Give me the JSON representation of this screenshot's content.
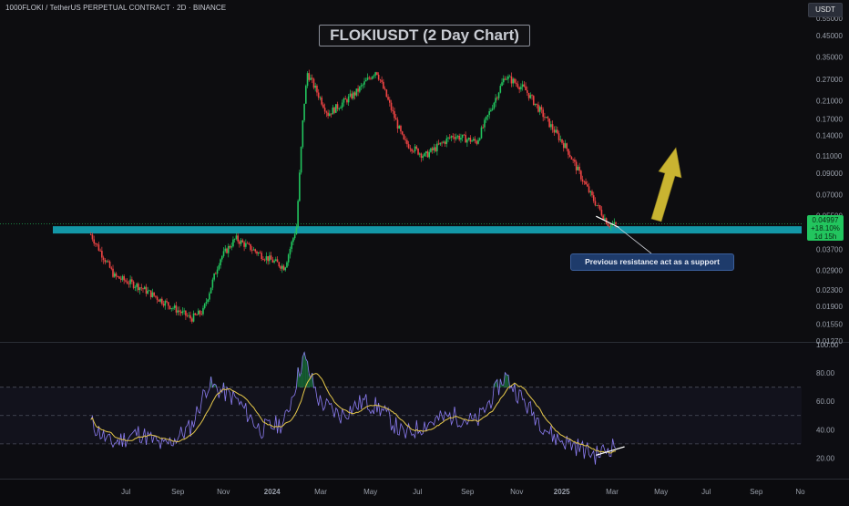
{
  "header": {
    "symbol_line": "1000FLOKI / TetherUS PERPETUAL CONTRACT · 2D · BINANCE",
    "currency_button": "USDT"
  },
  "annotation": {
    "title_box": "FLOKIUSDT (2 Day Chart)",
    "callout": "Previous resistance act as a support"
  },
  "last_price": {
    "price": "0.04997",
    "change": "+18.10%",
    "countdown": "1d 15h"
  },
  "colors": {
    "up": "#22c55e",
    "down": "#ef4444",
    "zone": "#14a6b8",
    "rsi": "#8b7cf0",
    "rsi_ma": "#e6c84a",
    "arrow": "#c9b431",
    "background": "#0b0b0e"
  },
  "chart_data": [
    {
      "type": "candlestick",
      "scale": "log",
      "ylim": [
        0.0127,
        0.55
      ],
      "y_ticks": [
        "0.55000",
        "0.45000",
        "0.35000",
        "0.27000",
        "0.21000",
        "0.17000",
        "0.14000",
        "0.11000",
        "0.09000",
        "0.07000",
        "0.05500",
        "0.03700",
        "0.02900",
        "0.02300",
        "0.01900",
        "0.01550",
        "0.01270"
      ],
      "x_ticks": [
        "Jul",
        "Sep",
        "Nov",
        "2024",
        "Mar",
        "May",
        "Jul",
        "Sep",
        "Nov",
        "2025",
        "Mar",
        "May",
        "Jul",
        "Sep",
        "No"
      ],
      "support_zone": [
        0.0455,
        0.0485
      ],
      "anchors": [
        {
          "date": "2023-06-10",
          "close": 0.044
        },
        {
          "date": "2023-07-10",
          "close": 0.027
        },
        {
          "date": "2023-08-10",
          "close": 0.024
        },
        {
          "date": "2023-09-15",
          "close": 0.0195
        },
        {
          "date": "2023-10-15",
          "close": 0.0165
        },
        {
          "date": "2023-10-30",
          "close": 0.018
        },
        {
          "date": "2023-11-20",
          "close": 0.033
        },
        {
          "date": "2023-12-10",
          "close": 0.042
        },
        {
          "date": "2024-01-10",
          "close": 0.035
        },
        {
          "date": "2024-02-10",
          "close": 0.03
        },
        {
          "date": "2024-02-25",
          "close": 0.048
        },
        {
          "date": "2024-03-05",
          "close": 0.19
        },
        {
          "date": "2024-03-10",
          "close": 0.29
        },
        {
          "date": "2024-04-05",
          "close": 0.18
        },
        {
          "date": "2024-05-10",
          "close": 0.23
        },
        {
          "date": "2024-06-05",
          "close": 0.3
        },
        {
          "date": "2024-07-10",
          "close": 0.13
        },
        {
          "date": "2024-08-05",
          "close": 0.11
        },
        {
          "date": "2024-09-10",
          "close": 0.14
        },
        {
          "date": "2024-10-10",
          "close": 0.13
        },
        {
          "date": "2024-11-15",
          "close": 0.28
        },
        {
          "date": "2024-12-10",
          "close": 0.24
        },
        {
          "date": "2025-01-10",
          "close": 0.16
        },
        {
          "date": "2025-02-01",
          "close": 0.12
        },
        {
          "date": "2025-02-20",
          "close": 0.085
        },
        {
          "date": "2025-03-05",
          "close": 0.068
        },
        {
          "date": "2025-03-25",
          "close": 0.05
        },
        {
          "date": "2025-04-05",
          "close": 0.049
        }
      ]
    },
    {
      "type": "line",
      "name": "RSI",
      "ylim": [
        10,
        100
      ],
      "y_ticks": [
        "100.00",
        "80.00",
        "60.00",
        "40.00",
        "20.00"
      ],
      "bands": [
        70,
        50,
        30
      ],
      "anchors": [
        {
          "date": "2023-06-10",
          "rsi": 45
        },
        {
          "date": "2023-07-05",
          "rsi": 30
        },
        {
          "date": "2023-08-10",
          "rsi": 38
        },
        {
          "date": "2023-09-10",
          "rsi": 28
        },
        {
          "date": "2023-10-15",
          "rsi": 42
        },
        {
          "date": "2023-11-05",
          "rsi": 72
        },
        {
          "date": "2023-12-10",
          "rsi": 62
        },
        {
          "date": "2024-01-10",
          "rsi": 40
        },
        {
          "date": "2024-02-10",
          "rsi": 45
        },
        {
          "date": "2024-03-05",
          "rsi": 92
        },
        {
          "date": "2024-03-25",
          "rsi": 60
        },
        {
          "date": "2024-04-20",
          "rsi": 50
        },
        {
          "date": "2024-05-20",
          "rsi": 60
        },
        {
          "date": "2024-06-10",
          "rsi": 55
        },
        {
          "date": "2024-07-10",
          "rsi": 36
        },
        {
          "date": "2024-08-10",
          "rsi": 45
        },
        {
          "date": "2024-09-10",
          "rsi": 50
        },
        {
          "date": "2024-10-10",
          "rsi": 45
        },
        {
          "date": "2024-11-15",
          "rsi": 78
        },
        {
          "date": "2024-12-15",
          "rsi": 55
        },
        {
          "date": "2025-01-15",
          "rsi": 35
        },
        {
          "date": "2025-02-15",
          "rsi": 28
        },
        {
          "date": "2025-03-10",
          "rsi": 22
        },
        {
          "date": "2025-04-05",
          "rsi": 30
        }
      ],
      "divergence_line": [
        {
          "date": "2025-03-10",
          "rsi": 22
        },
        {
          "date": "2025-04-15",
          "rsi": 28
        }
      ]
    }
  ]
}
